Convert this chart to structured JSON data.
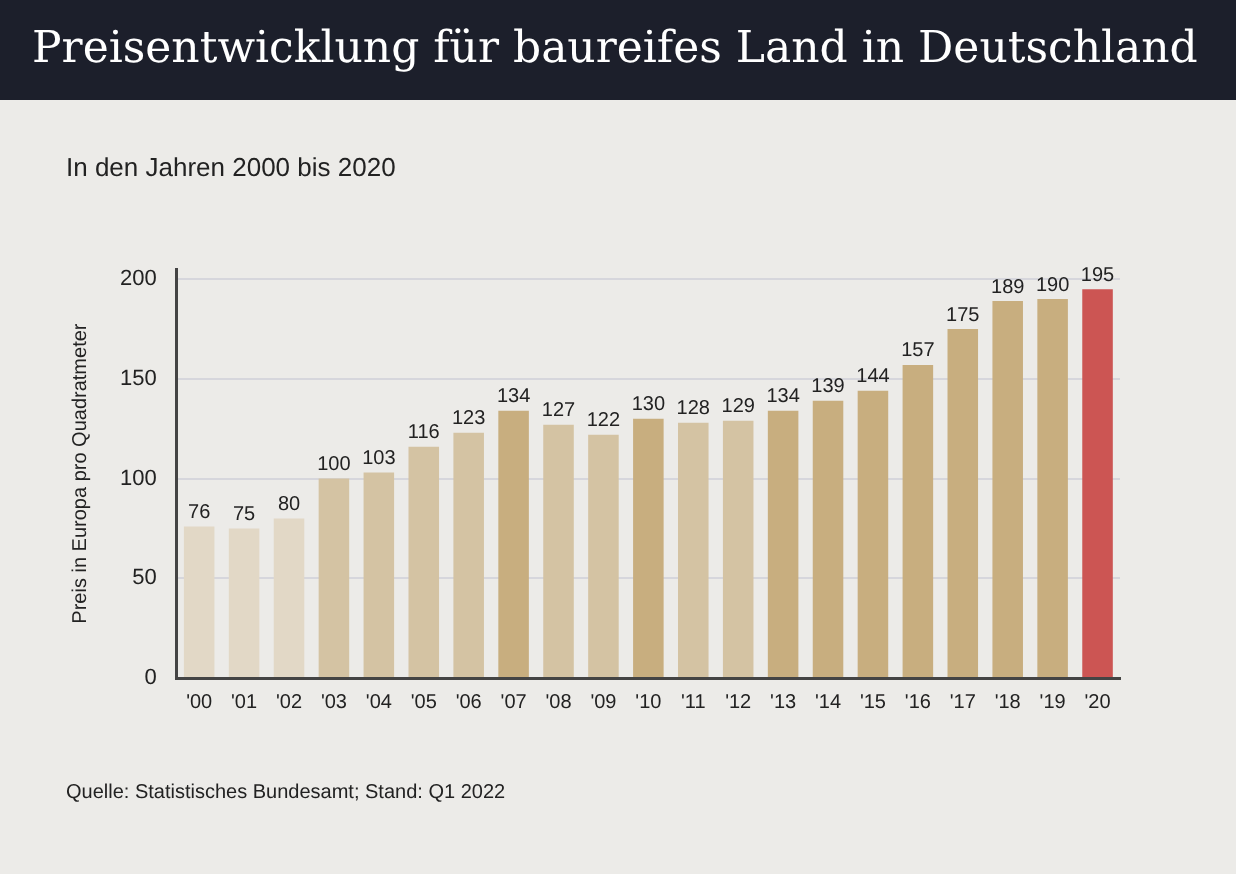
{
  "chart_data": {
    "type": "bar",
    "title": "Preisentwicklung für baureifes Land in Deutschland",
    "subtitle": "In den Jahren 2000 bis 2020",
    "ylabel": "Preis in Europa pro Quadratmeter",
    "categories": [
      "'00",
      "'01",
      "'02",
      "'03",
      "'04",
      "'05",
      "'06",
      "'07",
      "'08",
      "'09",
      "'10",
      "'11",
      "'12",
      "'13",
      "'14",
      "'15",
      "'16",
      "'17",
      "'18",
      "'19",
      "'20"
    ],
    "values": [
      76,
      75,
      80,
      100,
      103,
      116,
      123,
      134,
      127,
      122,
      130,
      128,
      129,
      134,
      139,
      144,
      157,
      175,
      189,
      190,
      195
    ],
    "colors": [
      "#e2d8c6",
      "#e2d8c6",
      "#e2d8c6",
      "#d4c3a3",
      "#d4c3a3",
      "#d4c3a3",
      "#d4c3a3",
      "#c8ae7f",
      "#d4c3a3",
      "#d4c3a3",
      "#c8ae7f",
      "#d4c3a3",
      "#d4c3a3",
      "#c8ae7f",
      "#c8ae7f",
      "#c8ae7f",
      "#c8ae7f",
      "#c8ae7f",
      "#c8ae7f",
      "#c8ae7f",
      "#cc5553"
    ],
    "ylim": [
      0,
      205
    ],
    "yticks": [
      0,
      50,
      100,
      150,
      200
    ],
    "grid": "y",
    "legend": false,
    "data_labels": true,
    "annotations": [
      "Quelle: Statistisches Bundesamt; Stand: Q1 2022"
    ]
  }
}
